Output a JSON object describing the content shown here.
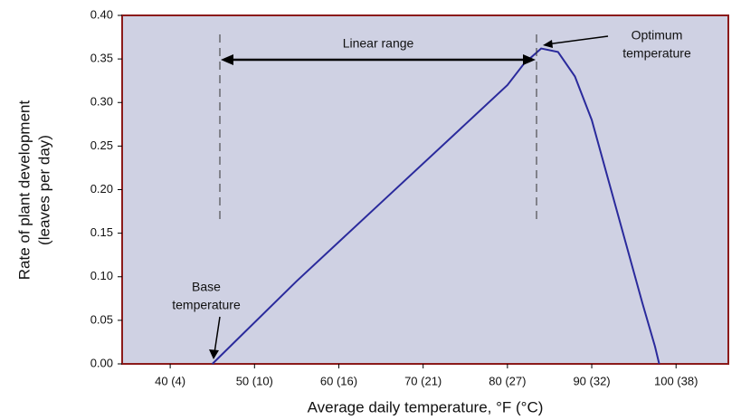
{
  "chart_data": {
    "type": "line",
    "x_label": "Average daily temperature, °F (°C)",
    "y_label": [
      "Rate of plant development",
      "(leaves per day)"
    ],
    "annotations": {
      "linear": "Linear range",
      "optimum": [
        "Optimum",
        "temperature"
      ],
      "base": [
        "Base",
        "temperature"
      ]
    },
    "xlim": [
      34.3,
      106.2
    ],
    "ylim": [
      0,
      0.4
    ],
    "xticks": [
      {
        "value": 40,
        "label": "40 (4)"
      },
      {
        "value": 50,
        "label": "50 (10)"
      },
      {
        "value": 60,
        "label": "60 (16)"
      },
      {
        "value": 70,
        "label": "70 (21)"
      },
      {
        "value": 80,
        "label": "80 (27)"
      },
      {
        "value": 90,
        "label": "90 (32)"
      },
      {
        "value": 100,
        "label": "100 (38)"
      }
    ],
    "yticks": [
      {
        "value": 0,
        "label": "0.00"
      },
      {
        "value": 0.05,
        "label": "0.05"
      },
      {
        "value": 0.1,
        "label": "0.10"
      },
      {
        "value": 0.15,
        "label": "0.15"
      },
      {
        "value": 0.2,
        "label": "0.20"
      },
      {
        "value": 0.25,
        "label": "0.25"
      },
      {
        "value": 0.3,
        "label": "0.30"
      },
      {
        "value": 0.35,
        "label": "0.35"
      },
      {
        "value": 0.4,
        "label": "0.40"
      }
    ],
    "series": [
      {
        "color": "#2a2a9c",
        "x": [
          45,
          55,
          65,
          75,
          80,
          82,
          84,
          86,
          88,
          90,
          92,
          94,
          96,
          97.5,
          98
        ],
        "values": [
          0,
          0.095,
          0.185,
          0.275,
          0.32,
          0.345,
          0.362,
          0.358,
          0.33,
          0.28,
          0.21,
          0.14,
          0.07,
          0.02,
          0
        ]
      }
    ],
    "background": "#cfd1e3",
    "frame_color": "#8b1a1a"
  }
}
